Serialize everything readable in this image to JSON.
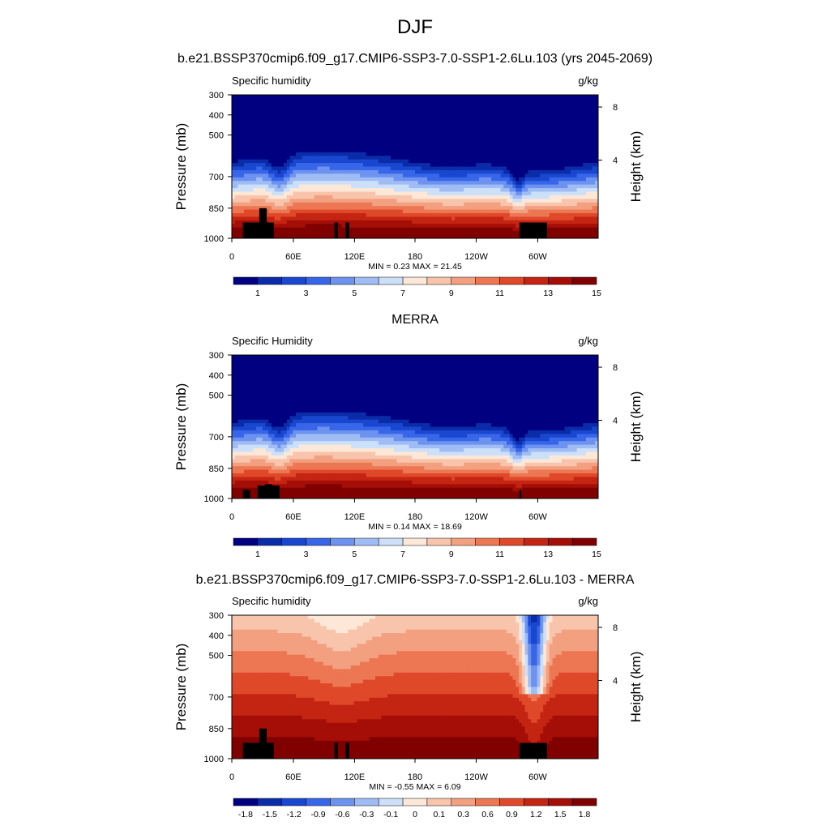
{
  "figure": {
    "title": "DJF",
    "panel_titles": [
      "b.e21.BSSP370cmip6.f09_g17.CMIP6-SSP3-7.0-SSP1-2.6Lu.103 (yrs 2045-2069)",
      "MERRA",
      "b.e21.BSSP370cmip6.f09_g17.CMIP6-SSP3-7.0-SSP1-2.6Lu.103 - MERRA"
    ]
  },
  "colors": {
    "sequential": [
      "#000080",
      "#0a2ca8",
      "#1a47d0",
      "#3866e8",
      "#6d92f0",
      "#a0bcf4",
      "#cde0fa",
      "#fde8d8",
      "#f8c4ac",
      "#f2a080",
      "#ec7752",
      "#e0482a",
      "#c42412",
      "#a40e06",
      "#800000"
    ],
    "diverging": [
      "#000080",
      "#0a2ca8",
      "#1a47d0",
      "#3866e8",
      "#6d92f0",
      "#a0bcf4",
      "#cde0fa",
      "#fde8d8",
      "#f8c4ac",
      "#f2a080",
      "#ec7752",
      "#e0482a",
      "#c42412",
      "#a40e06",
      "#800000"
    ]
  },
  "chart_data": [
    {
      "type": "heatmap",
      "left_label": "Specific humidity",
      "units": "g/kg",
      "ylabel": "Pressure (mb)",
      "ylabel_right": "Height (km)",
      "y_ticks": [
        "300",
        "400",
        "500",
        "700",
        "850",
        "1000"
      ],
      "y_ticks_right": [
        "8",
        "4"
      ],
      "x_ticks": [
        "0",
        "60E",
        "120E",
        "180",
        "120W",
        "60W"
      ],
      "stats": "MIN =   0.23  MAX =  21.45",
      "colorbar_labels": [
        "1",
        "3",
        "5",
        "7",
        "9",
        "11",
        "13",
        "15"
      ],
      "colorbar": "sequential"
    },
    {
      "type": "heatmap",
      "left_label": "Specific Humidity",
      "units": "g/kg",
      "ylabel": "Pressure (mb)",
      "ylabel_right": "Height (km)",
      "y_ticks": [
        "300",
        "400",
        "500",
        "700",
        "850",
        "1000"
      ],
      "y_ticks_right": [
        "8",
        "4"
      ],
      "x_ticks": [
        "0",
        "60E",
        "120E",
        "180",
        "120W",
        "60W"
      ],
      "stats": "MIN =   0.14  MAX =  18.69",
      "colorbar_labels": [
        "1",
        "3",
        "5",
        "7",
        "9",
        "11",
        "13",
        "15"
      ],
      "colorbar": "sequential"
    },
    {
      "type": "heatmap",
      "left_label": "Specific humidity",
      "units": "g/kg",
      "ylabel": "Pressure (mb)",
      "ylabel_right": "Height (km)",
      "y_ticks": [
        "300",
        "400",
        "500",
        "700",
        "850",
        "1000"
      ],
      "y_ticks_right": [
        "8",
        "4"
      ],
      "x_ticks": [
        "0",
        "60E",
        "120E",
        "180",
        "120W",
        "60W"
      ],
      "stats": "MIN =  -0.55  MAX =   6.09",
      "colorbar_labels": [
        "-1.8",
        "-1.5",
        "-1.2",
        "-0.9",
        "-0.6",
        "-0.3",
        "-0.1",
        "0",
        "0.1",
        "0.3",
        "0.6",
        "0.9",
        "1.2",
        "1.5",
        "1.8"
      ],
      "colorbar": "diverging"
    }
  ]
}
